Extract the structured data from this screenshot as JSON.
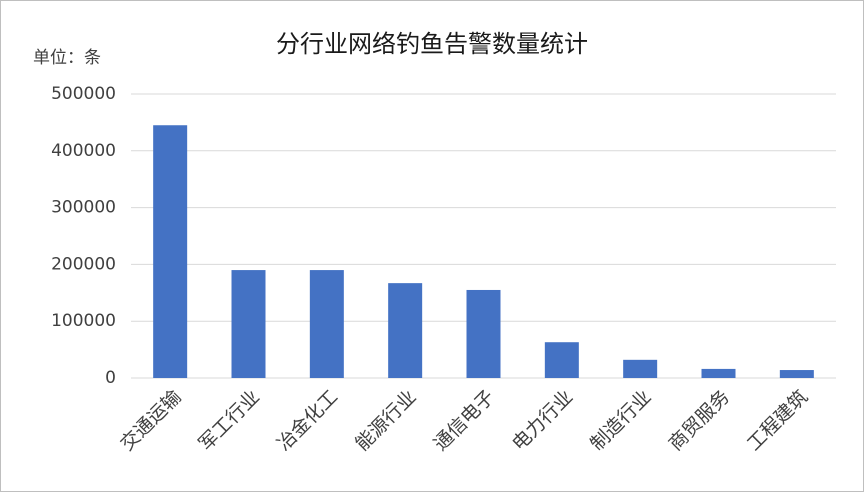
{
  "chart_data": {
    "type": "bar",
    "title": "分行业网络钓鱼告警数量统计",
    "y_label": "单位：条",
    "categories": [
      "交通运输",
      "军工行业",
      "冶金化工",
      "能源行业",
      "通信电子",
      "电力行业",
      "制造行业",
      "商贸服务",
      "工程建筑"
    ],
    "values": [
      445000,
      190000,
      190000,
      167000,
      155000,
      63000,
      32000,
      16000,
      14000
    ],
    "color": "#4472c4",
    "ylim": [
      0,
      500000
    ],
    "yticks": [
      0,
      100000,
      200000,
      300000,
      400000,
      500000
    ],
    "grid": true
  }
}
